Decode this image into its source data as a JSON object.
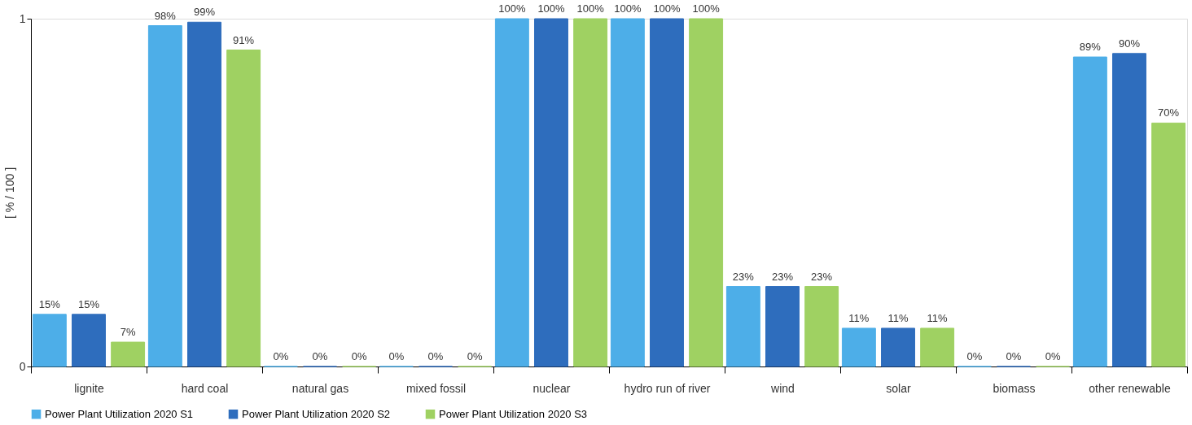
{
  "chart_data": {
    "type": "bar",
    "ylabel": "[ % / 100 ]",
    "categories": [
      "lignite",
      "hard coal",
      "natural gas",
      "mixed fossil",
      "nuclear",
      "hydro run of river",
      "wind",
      "solar",
      "biomass",
      "other renewable"
    ],
    "series": [
      {
        "name": "Power Plant Utilization 2020 S1",
        "color": "#4daee8",
        "values": [
          0.15,
          0.98,
          0,
          0,
          1,
          1,
          0.23,
          0.11,
          0,
          0.89
        ],
        "value_labels": [
          "15%",
          "98%",
          "0%",
          "0%",
          "100%",
          "100%",
          "23%",
          "11%",
          "0%",
          "89%"
        ]
      },
      {
        "name": "Power Plant Utilization 2020 S2",
        "color": "#2e6dbd",
        "values": [
          0.15,
          0.99,
          0,
          0,
          1,
          1,
          0.23,
          0.11,
          0,
          0.9
        ],
        "value_labels": [
          "15%",
          "99%",
          "0%",
          "0%",
          "100%",
          "100%",
          "23%",
          "11%",
          "0%",
          "90%"
        ]
      },
      {
        "name": "Power Plant Utilization 2020 S3",
        "color": "#9fd162",
        "values": [
          0.07,
          0.91,
          0,
          0,
          1,
          1,
          0.23,
          0.11,
          0,
          0.7
        ],
        "value_labels": [
          "7%",
          "91%",
          "0%",
          "0%",
          "100%",
          "100%",
          "23%",
          "11%",
          "0%",
          "70%"
        ]
      }
    ],
    "ylim": [
      0,
      1
    ],
    "yticks": [
      0,
      1
    ],
    "grid": false,
    "legend": "bottom"
  }
}
